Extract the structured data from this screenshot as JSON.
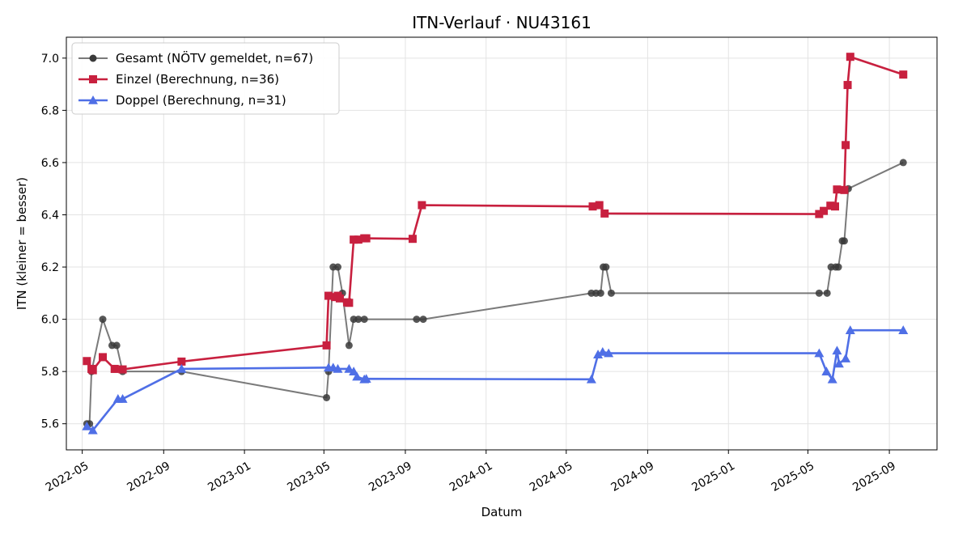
{
  "chart_data": {
    "type": "line",
    "title": "ITN-Verlauf · NU43161",
    "xlabel": "Datum",
    "ylabel": "ITN  (kleiner = besser)",
    "xlim": [
      "2022-04-07",
      "2025-11-12"
    ],
    "ylim": [
      5.5,
      7.08
    ],
    "x_ticks": [
      "2022-05",
      "2022-09",
      "2023-01",
      "2023-05",
      "2023-09",
      "2024-01",
      "2024-05",
      "2024-09",
      "2025-01",
      "2025-05",
      "2025-09"
    ],
    "y_ticks": [
      "5.6",
      "5.8",
      "6.0",
      "6.2",
      "6.4",
      "6.6",
      "6.8",
      "7.0"
    ],
    "grid": true,
    "legend": "upper-left",
    "series": [
      {
        "name": "Gesamt (NÖTV gemeldet, n=67)",
        "color": "#555555",
        "marker": "circle",
        "points": [
          [
            "2022-05-08",
            5.6
          ],
          [
            "2022-05-12",
            5.6
          ],
          [
            "2022-05-15",
            5.8
          ],
          [
            "2022-06-01",
            6.0
          ],
          [
            "2022-06-15",
            5.9
          ],
          [
            "2022-06-22",
            5.9
          ],
          [
            "2022-07-01",
            5.8
          ],
          [
            "2022-09-28",
            5.8
          ],
          [
            "2023-05-05",
            5.7
          ],
          [
            "2023-05-08",
            5.8
          ],
          [
            "2023-05-15",
            6.2
          ],
          [
            "2023-05-22",
            6.2
          ],
          [
            "2023-05-29",
            6.1
          ],
          [
            "2023-06-08",
            5.9
          ],
          [
            "2023-06-15",
            6.0
          ],
          [
            "2023-06-22",
            6.0
          ],
          [
            "2023-07-01",
            6.0
          ],
          [
            "2023-09-18",
            6.0
          ],
          [
            "2023-09-28",
            6.0
          ],
          [
            "2024-06-08",
            6.1
          ],
          [
            "2024-06-15",
            6.1
          ],
          [
            "2024-06-22",
            6.1
          ],
          [
            "2024-06-26",
            6.2
          ],
          [
            "2024-06-30",
            6.2
          ],
          [
            "2024-07-08",
            6.1
          ],
          [
            "2025-05-18",
            6.1
          ],
          [
            "2025-05-30",
            6.1
          ],
          [
            "2025-06-05",
            6.2
          ],
          [
            "2025-06-12",
            6.2
          ],
          [
            "2025-06-16",
            6.2
          ],
          [
            "2025-06-22",
            6.3
          ],
          [
            "2025-06-25",
            6.3
          ],
          [
            "2025-07-01",
            6.5
          ],
          [
            "2025-09-22",
            6.6
          ]
        ]
      },
      {
        "name": "Einzel (Berechnung, n=36)",
        "color": "#c8203f",
        "marker": "square",
        "points": [
          [
            "2022-05-08",
            5.84
          ],
          [
            "2022-05-15",
            5.81
          ],
          [
            "2022-05-17",
            5.805
          ],
          [
            "2022-06-01",
            5.855
          ],
          [
            "2022-06-19",
            5.81
          ],
          [
            "2022-07-01",
            5.808
          ],
          [
            "2022-09-28",
            5.838
          ],
          [
            "2023-05-05",
            5.9
          ],
          [
            "2023-05-08",
            6.09
          ],
          [
            "2023-05-18",
            6.085
          ],
          [
            "2023-05-22",
            6.09
          ],
          [
            "2023-05-25",
            6.08
          ],
          [
            "2023-06-05",
            6.065
          ],
          [
            "2023-06-08",
            6.063
          ],
          [
            "2023-06-15",
            6.305
          ],
          [
            "2023-06-22",
            6.305
          ],
          [
            "2023-07-01",
            6.31
          ],
          [
            "2023-07-04",
            6.31
          ],
          [
            "2023-09-12",
            6.308
          ],
          [
            "2023-09-26",
            6.437
          ],
          [
            "2024-06-10",
            6.432
          ],
          [
            "2024-06-20",
            6.437
          ],
          [
            "2024-06-28",
            6.405
          ],
          [
            "2025-05-18",
            6.403
          ],
          [
            "2025-05-25",
            6.415
          ],
          [
            "2025-06-04",
            6.435
          ],
          [
            "2025-06-11",
            6.432
          ],
          [
            "2025-06-14",
            6.497
          ],
          [
            "2025-06-25",
            6.495
          ],
          [
            "2025-06-27",
            6.667
          ],
          [
            "2025-06-30",
            6.897
          ],
          [
            "2025-07-04",
            7.005
          ],
          [
            "2025-09-22",
            6.937
          ]
        ]
      },
      {
        "name": "Doppel (Berechnung, n=31)",
        "color": "#4f6fe6",
        "marker": "triangle",
        "points": [
          [
            "2022-05-08",
            5.59
          ],
          [
            "2022-05-17",
            5.575
          ],
          [
            "2022-06-24",
            5.695
          ],
          [
            "2022-07-01",
            5.695
          ],
          [
            "2022-09-28",
            5.81
          ],
          [
            "2023-05-08",
            5.815
          ],
          [
            "2023-05-15",
            5.815
          ],
          [
            "2023-05-22",
            5.81
          ],
          [
            "2023-06-08",
            5.81
          ],
          [
            "2023-06-15",
            5.8
          ],
          [
            "2023-06-20",
            5.78
          ],
          [
            "2023-07-01",
            5.77
          ],
          [
            "2023-07-04",
            5.772
          ],
          [
            "2024-06-08",
            5.77
          ],
          [
            "2024-06-18",
            5.865
          ],
          [
            "2024-06-25",
            5.875
          ],
          [
            "2024-07-04",
            5.87
          ],
          [
            "2025-05-18",
            5.87
          ],
          [
            "2025-05-29",
            5.8
          ],
          [
            "2025-06-07",
            5.77
          ],
          [
            "2025-06-14",
            5.88
          ],
          [
            "2025-06-17",
            5.83
          ],
          [
            "2025-06-27",
            5.85
          ],
          [
            "2025-07-04",
            5.958
          ],
          [
            "2025-09-22",
            5.958
          ]
        ]
      }
    ]
  }
}
